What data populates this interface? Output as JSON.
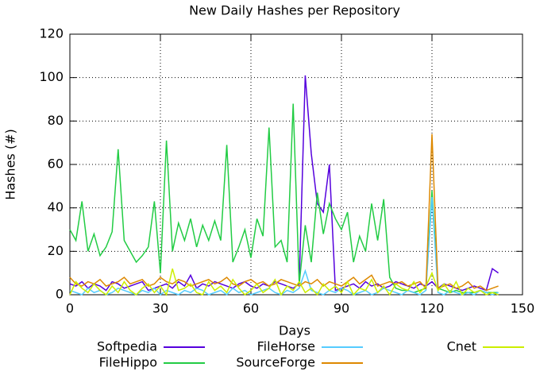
{
  "chart_data": {
    "type": "line",
    "title": "New Daily Hashes per Repository",
    "x_label": "Days",
    "y_label": "Hashes (#)",
    "x": [
      0,
      2,
      4,
      6,
      8,
      10,
      12,
      14,
      16,
      18,
      20,
      22,
      24,
      26,
      28,
      30,
      32,
      34,
      36,
      38,
      40,
      42,
      44,
      46,
      48,
      50,
      52,
      54,
      56,
      58,
      60,
      62,
      64,
      66,
      68,
      70,
      72,
      74,
      76,
      78,
      80,
      82,
      84,
      86,
      88,
      90,
      92,
      94,
      96,
      98,
      100,
      102,
      104,
      106,
      108,
      110,
      112,
      114,
      116,
      118,
      120,
      122,
      124,
      126,
      128,
      130,
      132,
      134,
      136,
      138,
      140,
      142
    ],
    "series": [
      {
        "name": "Softpedia",
        "color": "#5500dd",
        "values": [
          5,
          4,
          6,
          3,
          5,
          4,
          2,
          6,
          5,
          3,
          4,
          5,
          6,
          2,
          3,
          4,
          5,
          3,
          6,
          4,
          9,
          3,
          5,
          4,
          6,
          5,
          4,
          3,
          5,
          6,
          4,
          3,
          5,
          4,
          6,
          5,
          4,
          3,
          5,
          101,
          65,
          42,
          38,
          60,
          2,
          3,
          4,
          5,
          3,
          6,
          4,
          5,
          3,
          4,
          6,
          5,
          4,
          3,
          5,
          4,
          6,
          3,
          5,
          4,
          3,
          2,
          3,
          4,
          3,
          2,
          12,
          10
        ]
      },
      {
        "name": "FileHippo",
        "color": "#22cc44",
        "values": [
          30,
          25,
          43,
          20,
          28,
          18,
          22,
          29,
          67,
          25,
          20,
          15,
          18,
          22,
          43,
          10,
          71,
          20,
          33,
          25,
          35,
          22,
          32,
          25,
          34,
          25,
          69,
          15,
          22,
          30,
          17,
          35,
          27,
          77,
          22,
          25,
          15,
          88,
          5,
          32,
          15,
          47,
          28,
          42,
          35,
          30,
          38,
          15,
          27,
          20,
          42,
          25,
          44,
          8,
          3,
          2,
          2,
          1,
          2,
          3,
          48,
          3,
          2,
          1,
          2,
          1,
          1,
          1,
          2,
          1,
          1,
          1
        ]
      },
      {
        "name": "FileHorse",
        "color": "#55ccff",
        "values": [
          2,
          1,
          0,
          3,
          1,
          2,
          0,
          1,
          3,
          2,
          1,
          0,
          2,
          1,
          3,
          0,
          2,
          1,
          0,
          2,
          1,
          3,
          2,
          0,
          1,
          2,
          0,
          3,
          1,
          2,
          0,
          1,
          2,
          3,
          1,
          0,
          2,
          1,
          3,
          11,
          2,
          1,
          0,
          2,
          1,
          3,
          2,
          0,
          1,
          2,
          0,
          1,
          3,
          2,
          1,
          0,
          2,
          1,
          0,
          2,
          45,
          1,
          0,
          2,
          1,
          0,
          1,
          0,
          2,
          1,
          0,
          1
        ]
      },
      {
        "name": "SourceForge",
        "color": "#dd8800",
        "values": [
          8,
          5,
          4,
          6,
          5,
          7,
          4,
          5,
          6,
          8,
          5,
          6,
          7,
          4,
          5,
          8,
          6,
          5,
          7,
          6,
          4,
          5,
          6,
          7,
          5,
          6,
          8,
          5,
          4,
          6,
          7,
          5,
          6,
          4,
          5,
          7,
          6,
          5,
          4,
          6,
          5,
          7,
          4,
          6,
          5,
          4,
          6,
          8,
          5,
          7,
          9,
          4,
          5,
          6,
          5,
          6,
          4,
          5,
          6,
          3,
          74,
          3,
          4,
          5,
          3,
          4,
          6,
          3,
          4,
          2,
          3,
          4
        ]
      },
      {
        "name": "Cnet",
        "color": "#ccee00",
        "values": [
          0,
          6,
          3,
          1,
          5,
          2,
          0,
          4,
          1,
          6,
          2,
          0,
          3,
          5,
          1,
          4,
          0,
          12,
          2,
          3,
          5,
          1,
          0,
          6,
          2,
          4,
          1,
          7,
          3,
          0,
          2,
          5,
          1,
          3,
          7,
          0,
          4,
          2,
          6,
          1,
          3,
          0,
          5,
          2,
          4,
          1,
          6,
          0,
          3,
          2,
          7,
          1,
          4,
          0,
          5,
          3,
          2,
          6,
          1,
          4,
          10,
          2,
          5,
          1,
          6,
          0,
          3,
          1,
          2,
          0,
          1,
          0
        ]
      }
    ],
    "xlim": [
      0,
      150
    ],
    "xticks": [
      0,
      30,
      60,
      90,
      120,
      150
    ],
    "ylim": [
      0,
      120
    ],
    "yticks": [
      0,
      20,
      40,
      60,
      80,
      100,
      120
    ],
    "grid": true
  }
}
